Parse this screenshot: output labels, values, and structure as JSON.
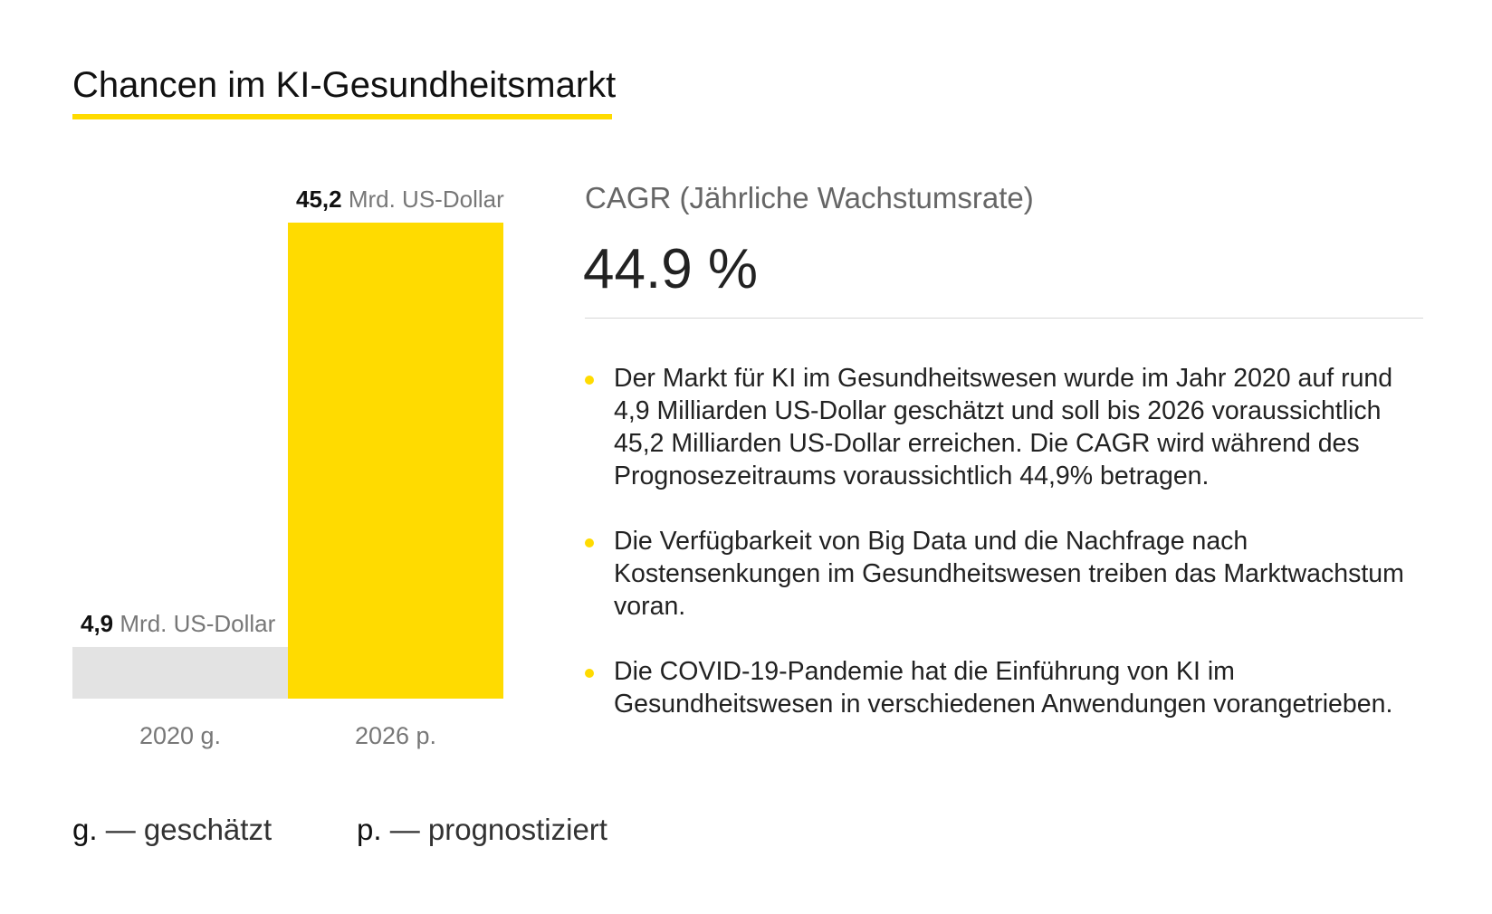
{
  "header": {
    "title": "Chancen im KI-Gesundheitsmarkt"
  },
  "colors": {
    "accent": "#ffdb00",
    "bar_2020": "#e3e3e3",
    "bar_2026": "#ffdb00",
    "muted_text": "#777777"
  },
  "chart_data": {
    "type": "bar",
    "categories": [
      "2020 g.",
      "2026 p."
    ],
    "values": [
      4.9,
      45.2
    ],
    "value_labels": [
      "4,9",
      "45,2"
    ],
    "unit_label": "Mrd. US-Dollar",
    "title": "",
    "xlabel": "",
    "ylabel": "",
    "ylim": [
      0,
      45.2
    ],
    "grid": false
  },
  "cagr": {
    "label": "CAGR (Jährliche Wachstumsrate)",
    "value": "44.9 %"
  },
  "bullets": [
    "Der Markt für KI im Gesundheitswesen wurde im Jahr 2020 auf rund 4,9 Milliarden US-Dollar geschätzt und soll bis 2026 voraussichtlich 45,2 Milliarden US-Dollar erreichen. Die CAGR wird während des Prognosezeitraums voraussichtlich 44,9% betragen.",
    "Die Verfügbarkeit von Big Data und die Nachfrage nach Kostensenkungen im Gesundheitswesen treiben das Marktwachstum voran.",
    "Die COVID-19-Pandemie hat die Einführung von KI im Gesundheitswesen in verschiedenen Anwendungen vorangetrieben."
  ],
  "legend": {
    "estimated_abbr": "g.",
    "estimated_text": "— geschätzt",
    "forecast_abbr": "p.",
    "forecast_text": "— prognostiziert"
  }
}
